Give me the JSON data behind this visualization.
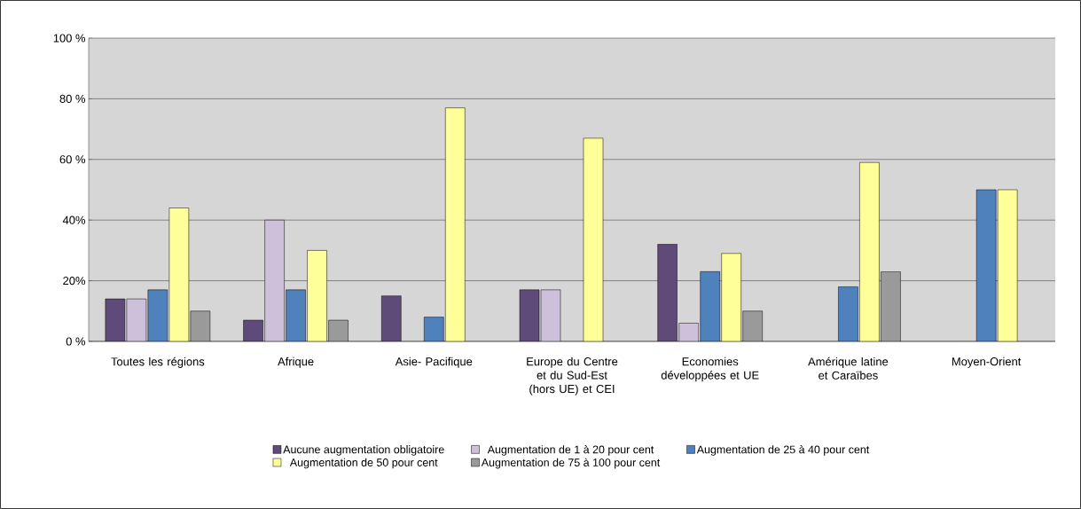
{
  "chart_data": {
    "type": "bar",
    "categories": [
      "Toutes les régions",
      "Afrique",
      "Asie- Pacifique",
      "Europe du Centre et du Sud-Est (hors UE) et CEI",
      "Economies développées et UE",
      "Amérique latine et Caraïbes",
      "Moyen-Orient"
    ],
    "series": [
      {
        "name": "Aucune augmentation obligatoire",
        "color": "#5f4b7a",
        "values": [
          14,
          7,
          15,
          17,
          32,
          null,
          null
        ]
      },
      {
        "name": "Augmentation de 1 à 20 pour cent",
        "color": "#ccc0da",
        "values": [
          14,
          40,
          null,
          17,
          6,
          null,
          null
        ]
      },
      {
        "name": "Augmentation de 25 à 40 pour cent",
        "color": "#4f81bd",
        "values": [
          17,
          17,
          8,
          null,
          23,
          18,
          50
        ]
      },
      {
        "name": "Augmentation de 50 pour cent",
        "color": "#ffff99",
        "values": [
          44,
          30,
          77,
          67,
          29,
          59,
          50
        ]
      },
      {
        "name": "Augmentation de 75 à 100 pour cent",
        "color": "#9a9a9a",
        "values": [
          10,
          7,
          null,
          null,
          10,
          23,
          null
        ]
      }
    ],
    "ylim": [
      0,
      100
    ],
    "yticks": [
      {
        "value": 0,
        "label": "0 %"
      },
      {
        "value": 20,
        "label": "20%"
      },
      {
        "value": 40,
        "label": "40%"
      },
      {
        "value": 60,
        "label": "60 %"
      },
      {
        "value": 80,
        "label": "80 %"
      },
      {
        "value": 100,
        "label": "100 %"
      }
    ],
    "grid": "y",
    "legend": "bottom"
  }
}
